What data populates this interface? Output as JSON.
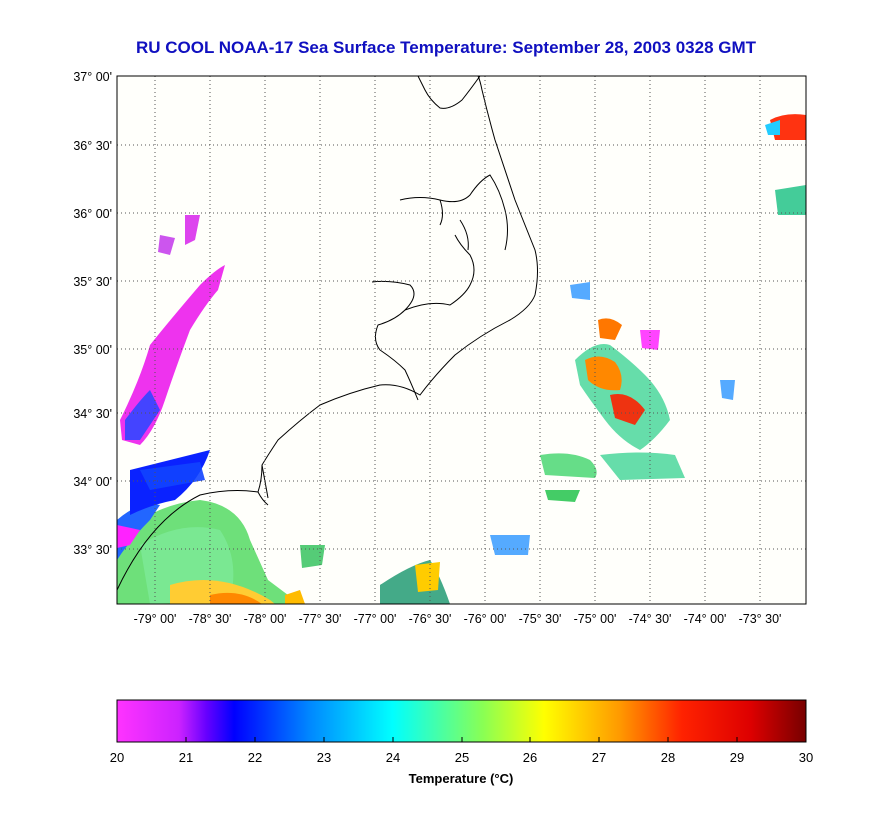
{
  "title": "RU COOL  NOAA-17  Sea Surface Temperature:  September 28, 2003 0328 GMT",
  "map": {
    "lat_ticks": [
      "37° 00'",
      "36° 30'",
      "36° 00'",
      "35° 30'",
      "35° 00'",
      "34° 30'",
      "34° 00'",
      "33° 30'"
    ],
    "lon_ticks": [
      "-79° 00'",
      "-78° 30'",
      "-78° 00'",
      "-77° 30'",
      "-77° 00'",
      "-76° 30'",
      "-76° 00'",
      "-75° 30'",
      "-75° 00'",
      "-74° 30'",
      "-74° 00'",
      "-73° 30'"
    ],
    "lat_values": [
      37.0,
      36.5,
      36.0,
      35.5,
      35.0,
      34.5,
      34.0,
      33.5
    ],
    "lon_values": [
      -79.0,
      -78.5,
      -78.0,
      -77.5,
      -77.0,
      -76.5,
      -76.0,
      -75.5,
      -75.0,
      -74.5,
      -74.0,
      -73.5
    ],
    "grid": "dotted"
  },
  "colorbar": {
    "label": "Temperature (°C)",
    "ticks": [
      "20",
      "21",
      "22",
      "23",
      "24",
      "25",
      "26",
      "27",
      "28",
      "29",
      "30"
    ],
    "min": 20,
    "max": 30,
    "colors": [
      "#ff00ff",
      "#8800ff",
      "#0000ff",
      "#0088ff",
      "#00ffff",
      "#88ff44",
      "#ffff00",
      "#ff9900",
      "#ff2200",
      "#ee0000",
      "#880000"
    ]
  }
}
